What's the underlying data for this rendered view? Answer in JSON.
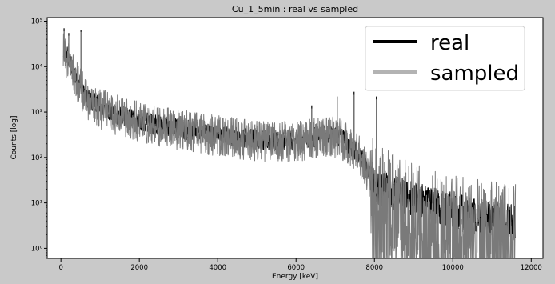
{
  "chart_data": {
    "type": "line",
    "title": "Cu_1_5min : real vs sampled",
    "xlabel": "Energy [keV]",
    "ylabel": "Counts [log]",
    "xlim": [
      -350,
      12300
    ],
    "ylim": [
      0.6,
      120000
    ],
    "yscale": "log",
    "x_ticks": [
      0,
      2000,
      4000,
      6000,
      8000,
      10000,
      12000
    ],
    "x_tick_labels": [
      "0",
      "2000",
      "4000",
      "6000",
      "8000",
      "10000",
      "12000"
    ],
    "y_ticks": [
      1,
      10,
      100,
      1000,
      10000,
      100000
    ],
    "y_tick_labels": [
      "10⁰",
      "10¹",
      "10²",
      "10³",
      "10⁴",
      "10⁵"
    ],
    "grid": false,
    "legend": {
      "position": "top-right"
    },
    "series": [
      {
        "name": "real",
        "color": "#000000",
        "x": [
          60,
          100,
          200,
          300,
          400,
          500,
          700,
          1000,
          1500,
          2000,
          2500,
          3000,
          3500,
          4000,
          4500,
          5000,
          5500,
          6000,
          6500,
          6900,
          7200,
          7500,
          7700,
          7900,
          8000,
          8200,
          8500,
          9000,
          9500,
          10000,
          10500,
          11000,
          11600
        ],
        "y": [
          25000,
          20000,
          15000,
          10000,
          6000,
          3500,
          2000,
          1300,
          850,
          640,
          520,
          440,
          370,
          320,
          280,
          250,
          235,
          240,
          280,
          320,
          250,
          150,
          90,
          40,
          25,
          20,
          16,
          12,
          9,
          7,
          5.5,
          4.5,
          4
        ],
        "peaks": [
          {
            "x": 80,
            "y": 70000
          },
          {
            "x": 200,
            "y": 55000
          },
          {
            "x": 510,
            "y": 65000
          },
          {
            "x": 6400,
            "y": 1400
          },
          {
            "x": 7050,
            "y": 2200
          },
          {
            "x": 7480,
            "y": 2800
          },
          {
            "x": 8050,
            "y": 2200
          }
        ]
      },
      {
        "name": "sampled",
        "color": "#b3b3b3",
        "x": [
          60,
          100,
          200,
          300,
          400,
          500,
          700,
          1000,
          1500,
          2000,
          2500,
          3000,
          3500,
          4000,
          4500,
          5000,
          5500,
          6000,
          6500,
          6900,
          7200,
          7500,
          7700,
          7900,
          8000,
          8200,
          8500,
          9000,
          9500,
          10000,
          10500,
          11000,
          11600
        ],
        "y": [
          23000,
          18000,
          13000,
          9000,
          5500,
          3200,
          1850,
          1200,
          800,
          600,
          490,
          410,
          345,
          300,
          262,
          233,
          220,
          225,
          262,
          300,
          235,
          140,
          85,
          34,
          18,
          12,
          8,
          5,
          3.5,
          2.8,
          2.3,
          2,
          1.8
        ],
        "peaks": [
          {
            "x": 80,
            "y": 60000
          },
          {
            "x": 200,
            "y": 48000
          },
          {
            "x": 510,
            "y": 58000
          },
          {
            "x": 6400,
            "y": 1200
          },
          {
            "x": 7050,
            "y": 1900
          },
          {
            "x": 7480,
            "y": 2400
          },
          {
            "x": 8050,
            "y": 1900
          }
        ]
      }
    ]
  }
}
